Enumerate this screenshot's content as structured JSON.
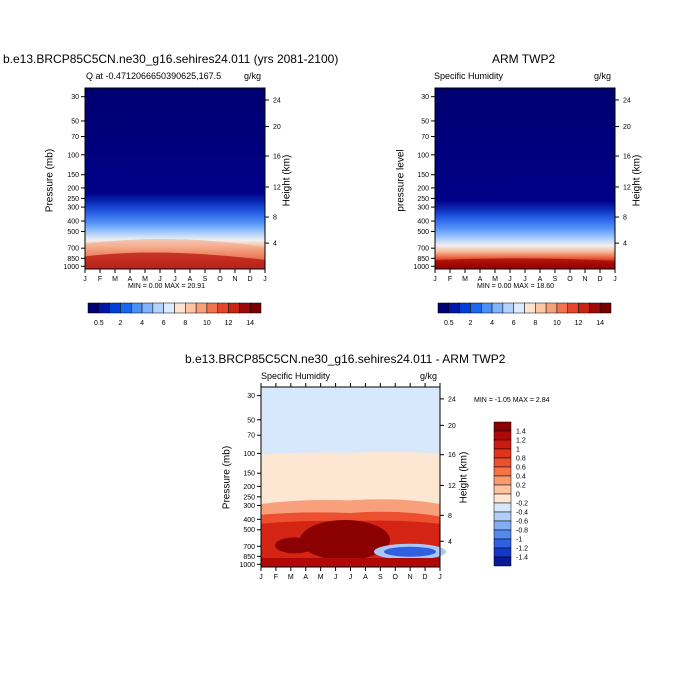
{
  "chart_data": [
    {
      "type": "heatmap",
      "title": "b.e13.BRCP85C5CN.ne30_g16.sehires24.011 (yrs 2081-2100)",
      "subtitle_left": "Q at -0.4712066650390625,167.5",
      "subtitle_right": "g/kg",
      "ylabel": "Pressure (mb)",
      "y2label": "Height (km)",
      "x_ticks": [
        "J",
        "F",
        "M",
        "A",
        "M",
        "J",
        "J",
        "A",
        "S",
        "O",
        "N",
        "D",
        "J"
      ],
      "pressure_ticks": [
        30,
        50,
        70,
        100,
        150,
        200,
        250,
        300,
        400,
        500,
        700,
        850,
        1000
      ],
      "height_ticks": [
        24,
        20,
        16,
        12,
        8,
        4
      ],
      "stats": "MIN =   0.00 MAX =  20.91",
      "colorbar_labels": [
        "0.5",
        "2",
        "4",
        "6",
        "8",
        "10",
        "12",
        "14"
      ],
      "colorbar_colors": [
        "#000070",
        "#0018a8",
        "#0040d8",
        "#1a68f0",
        "#4a90f8",
        "#80b4fc",
        "#b4d2fc",
        "#dcebff",
        "#fde4d0",
        "#fcc6a4",
        "#f8a07c",
        "#f2744e",
        "#e4462a",
        "#c82414",
        "#a00808",
        "#780000"
      ]
    },
    {
      "type": "heatmap",
      "title": "ARM TWP2",
      "subtitle_left": "Specific Humidity",
      "subtitle_right": "g/kg",
      "ylabel": "pressure level",
      "y2label": "Height (km)",
      "x_ticks": [
        "J",
        "F",
        "M",
        "A",
        "M",
        "J",
        "J",
        "A",
        "S",
        "O",
        "N",
        "D",
        "J"
      ],
      "pressure_ticks": [
        30,
        50,
        70,
        100,
        150,
        200,
        250,
        300,
        400,
        500,
        700,
        850,
        1000
      ],
      "height_ticks": [
        24,
        20,
        16,
        12,
        8,
        4
      ],
      "stats": "MIN =   0.00 MAX =  18.60",
      "colorbar_labels": [
        "0.5",
        "2",
        "4",
        "6",
        "8",
        "10",
        "12",
        "14"
      ]
    },
    {
      "type": "heatmap",
      "title": "b.e13.BRCP85C5CN.ne30_g16.sehires24.011 - ARM TWP2",
      "subtitle_left": "Specific Humidity",
      "subtitle_right": "g/kg",
      "ylabel": "Pressure (mb)",
      "y2label": "Height (km)",
      "x_ticks": [
        "J",
        "F",
        "M",
        "A",
        "M",
        "J",
        "J",
        "A",
        "S",
        "O",
        "N",
        "D",
        "J"
      ],
      "pressure_ticks": [
        30,
        50,
        70,
        100,
        150,
        200,
        250,
        300,
        400,
        500,
        700,
        850,
        1000
      ],
      "height_ticks": [
        24,
        20,
        16,
        12,
        8,
        4
      ],
      "stats": "MIN = -1.05 MAX =   2.84",
      "colorbar_labels": [
        "1.4",
        "1.2",
        "1",
        "0.8",
        "0.6",
        "0.4",
        "0.2",
        "0",
        "-0.2",
        "-0.4",
        "-0.6",
        "-0.8",
        "-1",
        "-1.2",
        "-1.4"
      ],
      "colorbar_colors": [
        "#8b0000",
        "#b00808",
        "#cc1a10",
        "#e0341c",
        "#ec5030",
        "#f47448",
        "#f89c70",
        "#fcc49c",
        "#fde6d2",
        "#d8e8fc",
        "#b0cef8",
        "#84aef4",
        "#5688ee",
        "#2e60e2",
        "#1238c8",
        "#081898"
      ]
    }
  ]
}
